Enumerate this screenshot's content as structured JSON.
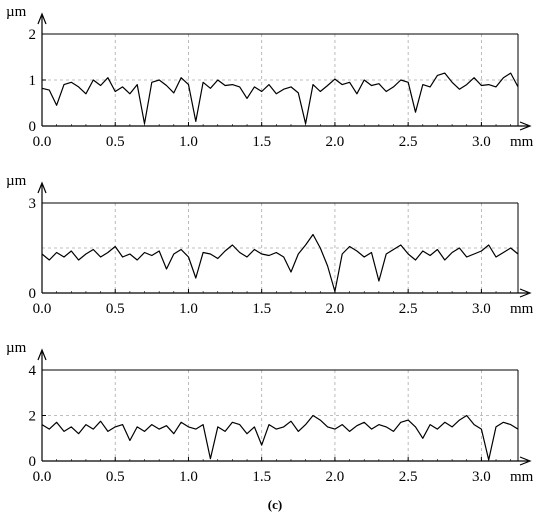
{
  "caption": "(c)",
  "chart_data": [
    {
      "type": "line",
      "title": "",
      "ylabel": "µm",
      "xlabel": "mm",
      "xlim": [
        0,
        3.25
      ],
      "ylim": [
        0,
        2
      ],
      "x_ticks": [
        0.0,
        0.5,
        1.0,
        1.5,
        2.0,
        2.5,
        3.0
      ],
      "x_tick_labels": [
        "0.0",
        "0.5",
        "1.0",
        "1.5",
        "2.0",
        "2.5",
        "3.0"
      ],
      "y_ticks": [
        0,
        1,
        2
      ],
      "y_tick_labels": [
        "0",
        "1",
        "2"
      ],
      "grid": true,
      "series": [
        {
          "name": "",
          "color": "#000000",
          "x": [
            0.0,
            0.05,
            0.1,
            0.15,
            0.2,
            0.25,
            0.3,
            0.35,
            0.4,
            0.45,
            0.5,
            0.55,
            0.6,
            0.65,
            0.7,
            0.75,
            0.8,
            0.85,
            0.9,
            0.95,
            1.0,
            1.05,
            1.1,
            1.15,
            1.2,
            1.25,
            1.3,
            1.35,
            1.4,
            1.45,
            1.5,
            1.55,
            1.6,
            1.65,
            1.7,
            1.75,
            1.8,
            1.85,
            1.9,
            1.95,
            2.0,
            2.05,
            2.1,
            2.15,
            2.2,
            2.25,
            2.3,
            2.35,
            2.4,
            2.45,
            2.5,
            2.55,
            2.6,
            2.65,
            2.7,
            2.75,
            2.8,
            2.85,
            2.9,
            2.95,
            3.0,
            3.05,
            3.1,
            3.15,
            3.2,
            3.25
          ],
          "y": [
            0.82,
            0.78,
            0.45,
            0.9,
            0.95,
            0.85,
            0.7,
            1.0,
            0.88,
            1.05,
            0.75,
            0.85,
            0.7,
            0.9,
            0.05,
            0.95,
            1.0,
            0.88,
            0.72,
            1.05,
            0.9,
            0.1,
            0.95,
            0.82,
            1.0,
            0.88,
            0.9,
            0.85,
            0.6,
            0.85,
            0.75,
            0.9,
            0.7,
            0.8,
            0.85,
            0.72,
            0.05,
            0.9,
            0.75,
            0.88,
            1.02,
            0.9,
            0.95,
            0.7,
            1.0,
            0.88,
            0.92,
            0.75,
            0.85,
            1.0,
            0.95,
            0.3,
            0.9,
            0.85,
            1.1,
            1.15,
            0.95,
            0.8,
            0.9,
            1.05,
            0.88,
            0.9,
            0.85,
            1.05,
            1.15,
            0.85
          ]
        }
      ]
    },
    {
      "type": "line",
      "title": "",
      "ylabel": "µm",
      "xlabel": "mm",
      "xlim": [
        0,
        3.25
      ],
      "ylim": [
        0,
        3
      ],
      "x_ticks": [
        0.0,
        0.5,
        1.0,
        1.5,
        2.0,
        2.5,
        3.0
      ],
      "x_tick_labels": [
        "0.0",
        "0.5",
        "1.0",
        "1.5",
        "2.0",
        "2.5",
        "3.0"
      ],
      "y_ticks": [
        0,
        3
      ],
      "y_tick_labels": [
        "0",
        "3"
      ],
      "grid": true,
      "series": [
        {
          "name": "",
          "color": "#000000",
          "x": [
            0.0,
            0.05,
            0.1,
            0.15,
            0.2,
            0.25,
            0.3,
            0.35,
            0.4,
            0.45,
            0.5,
            0.55,
            0.6,
            0.65,
            0.7,
            0.75,
            0.8,
            0.85,
            0.9,
            0.95,
            1.0,
            1.05,
            1.1,
            1.15,
            1.2,
            1.25,
            1.3,
            1.35,
            1.4,
            1.45,
            1.5,
            1.55,
            1.6,
            1.65,
            1.7,
            1.75,
            1.8,
            1.85,
            1.9,
            1.95,
            2.0,
            2.05,
            2.1,
            2.15,
            2.2,
            2.25,
            2.3,
            2.35,
            2.4,
            2.45,
            2.5,
            2.55,
            2.6,
            2.65,
            2.7,
            2.75,
            2.8,
            2.85,
            2.9,
            2.95,
            3.0,
            3.05,
            3.1,
            3.15,
            3.2,
            3.25
          ],
          "y": [
            1.3,
            1.1,
            1.35,
            1.2,
            1.4,
            1.1,
            1.3,
            1.45,
            1.2,
            1.35,
            1.55,
            1.2,
            1.3,
            1.1,
            1.35,
            1.25,
            1.4,
            0.8,
            1.3,
            1.45,
            1.2,
            0.5,
            1.35,
            1.3,
            1.15,
            1.4,
            1.6,
            1.35,
            1.2,
            1.45,
            1.3,
            1.25,
            1.35,
            1.2,
            0.7,
            1.3,
            1.6,
            1.95,
            1.5,
            0.9,
            0.05,
            1.3,
            1.55,
            1.4,
            1.2,
            1.35,
            0.4,
            1.3,
            1.45,
            1.6,
            1.3,
            1.1,
            1.4,
            1.25,
            1.45,
            1.1,
            1.35,
            1.5,
            1.2,
            1.3,
            1.4,
            1.6,
            1.2,
            1.35,
            1.5,
            1.3
          ]
        }
      ]
    },
    {
      "type": "line",
      "title": "",
      "ylabel": "µm",
      "xlabel": "mm",
      "xlim": [
        0,
        3.25
      ],
      "ylim": [
        0,
        4
      ],
      "x_ticks": [
        0.0,
        0.5,
        1.0,
        1.5,
        2.0,
        2.5,
        3.0
      ],
      "x_tick_labels": [
        "0.0",
        "0.5",
        "1.0",
        "1.5",
        "2.0",
        "2.5",
        "3.0"
      ],
      "y_ticks": [
        0,
        2,
        4
      ],
      "y_tick_labels": [
        "0",
        "2",
        "4"
      ],
      "grid": true,
      "series": [
        {
          "name": "",
          "color": "#000000",
          "x": [
            0.0,
            0.05,
            0.1,
            0.15,
            0.2,
            0.25,
            0.3,
            0.35,
            0.4,
            0.45,
            0.5,
            0.55,
            0.6,
            0.65,
            0.7,
            0.75,
            0.8,
            0.85,
            0.9,
            0.95,
            1.0,
            1.05,
            1.1,
            1.15,
            1.2,
            1.25,
            1.3,
            1.35,
            1.4,
            1.45,
            1.5,
            1.55,
            1.6,
            1.65,
            1.7,
            1.75,
            1.8,
            1.85,
            1.9,
            1.95,
            2.0,
            2.05,
            2.1,
            2.15,
            2.2,
            2.25,
            2.3,
            2.35,
            2.4,
            2.45,
            2.5,
            2.55,
            2.6,
            2.65,
            2.7,
            2.75,
            2.8,
            2.85,
            2.9,
            2.95,
            3.0,
            3.05,
            3.1,
            3.15,
            3.2,
            3.25
          ],
          "y": [
            1.6,
            1.4,
            1.7,
            1.3,
            1.5,
            1.2,
            1.6,
            1.4,
            1.75,
            1.3,
            1.5,
            1.6,
            0.9,
            1.5,
            1.3,
            1.6,
            1.4,
            1.55,
            1.2,
            1.7,
            1.5,
            1.4,
            1.6,
            0.1,
            1.5,
            1.3,
            1.7,
            1.6,
            1.2,
            1.5,
            0.7,
            1.6,
            1.4,
            1.5,
            1.75,
            1.3,
            1.6,
            2.0,
            1.8,
            1.5,
            1.4,
            1.6,
            1.3,
            1.55,
            1.7,
            1.4,
            1.6,
            1.5,
            1.3,
            1.7,
            1.8,
            1.5,
            1.0,
            1.6,
            1.4,
            1.7,
            1.5,
            1.8,
            2.0,
            1.6,
            1.4,
            0.05,
            1.5,
            1.7,
            1.6,
            1.4
          ]
        }
      ]
    }
  ]
}
